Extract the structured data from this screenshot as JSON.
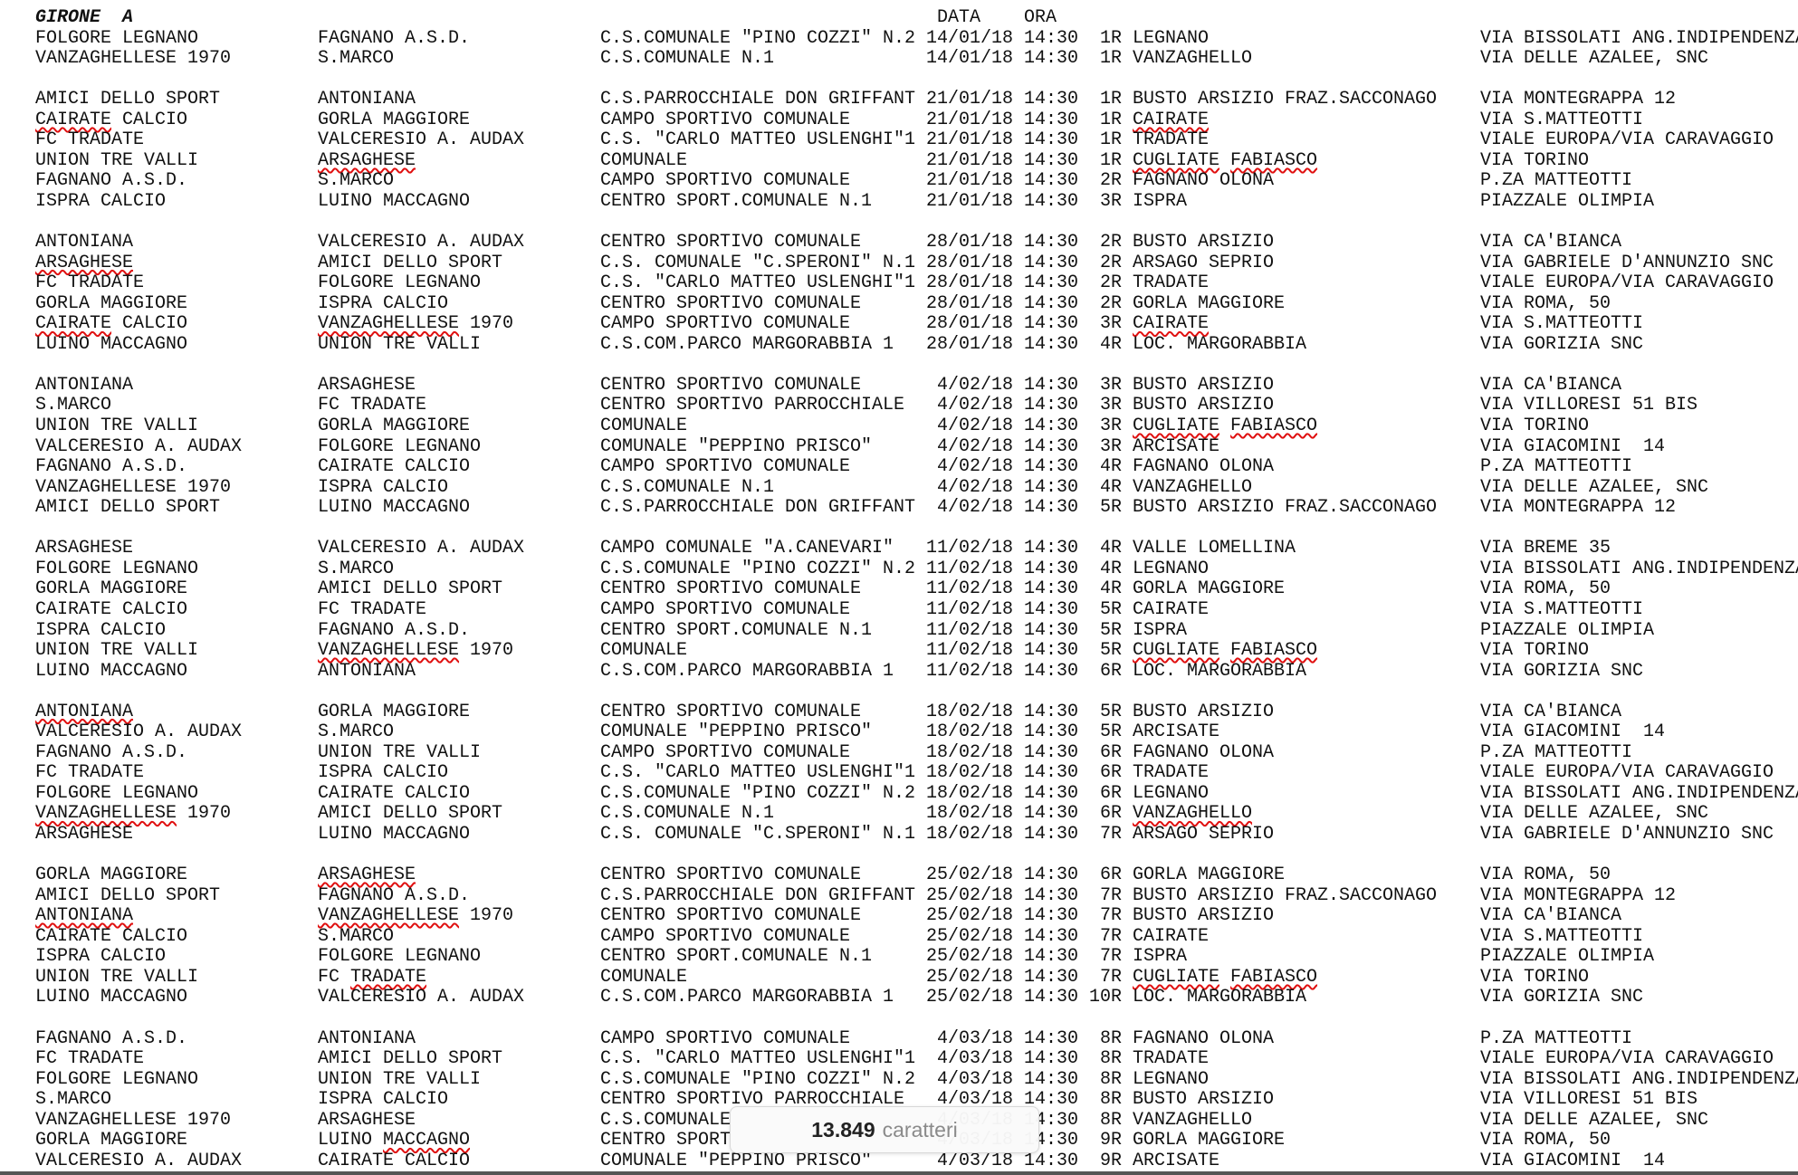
{
  "header": {
    "title": "GIRONE  A",
    "date_label": "DATA",
    "time_label": "ORA"
  },
  "groups": [
    {
      "rows": [
        {
          "c": [
            "FOLGORE LEGNANO",
            "FAGNANO A.S.D.",
            "C.S.COMUNALE \"PINO COZZI\" N.2",
            "14/01/18",
            "14:30",
            "1R",
            "LEGNANO",
            "VIA BISSOLATI ANG.INDIPENDENZA"
          ]
        },
        {
          "c": [
            "VANZAGHELLESE 1970",
            "S.MARCO",
            "C.S.COMUNALE N.1",
            "14/01/18",
            "14:30",
            "1R",
            "VANZAGHELLO",
            "VIA DELLE AZALEE, SNC"
          ]
        }
      ]
    },
    {
      "rows": [
        {
          "c": [
            "AMICI DELLO SPORT",
            "ANTONIANA",
            "C.S.PARROCCHIALE DON GRIFFANT",
            "21/01/18",
            "14:30",
            "1R",
            "BUSTO ARSIZIO FRAZ.SACCONAGO",
            "VIA MONTEGRAPPA 12"
          ]
        },
        {
          "c": [
            "CAIRATE CALCIO",
            "GORLA MAGGIORE",
            "CAMPO SPORTIVO COMUNALE",
            "21/01/18",
            "14:30",
            "1R",
            "CAIRATE",
            "VIA S.MATTEOTTI"
          ],
          "f": {
            "0": [
              "CAIRATE"
            ],
            "6": [
              "CAIRATE"
            ]
          }
        },
        {
          "c": [
            "FC TRADATE",
            "VALCERESIO A. AUDAX",
            "C.S. \"CARLO MATTEO USLENGHI\"1",
            "21/01/18",
            "14:30",
            "1R",
            "TRADATE",
            "VIALE EUROPA/VIA CARAVAGGIO"
          ]
        },
        {
          "c": [
            "UNION TRE VALLI",
            "ARSAGHESE",
            "COMUNALE",
            "21/01/18",
            "14:30",
            "1R",
            "CUGLIATE FABIASCO",
            "VIA TORINO"
          ],
          "f": {
            "1": [
              "ARSAGHESE"
            ],
            "6": [
              "CUGLIATE",
              "FABIASCO"
            ]
          }
        },
        {
          "c": [
            "FAGNANO A.S.D.",
            "S.MARCO",
            "CAMPO SPORTIVO COMUNALE",
            "21/01/18",
            "14:30",
            "2R",
            "FAGNANO OLONA",
            "P.ZA MATTEOTTI"
          ]
        },
        {
          "c": [
            "ISPRA CALCIO",
            "LUINO MACCAGNO",
            "CENTRO SPORT.COMUNALE N.1",
            "21/01/18",
            "14:30",
            "3R",
            "ISPRA",
            "PIAZZALE OLIMPIA"
          ]
        }
      ]
    },
    {
      "rows": [
        {
          "c": [
            "ANTONIANA",
            "VALCERESIO A. AUDAX",
            "CENTRO SPORTIVO COMUNALE",
            "28/01/18",
            "14:30",
            "2R",
            "BUSTO ARSIZIO",
            "VIA CA'BIANCA"
          ]
        },
        {
          "c": [
            "ARSAGHESE",
            "AMICI DELLO SPORT",
            "C.S. COMUNALE \"C.SPERONI\" N.1",
            "28/01/18",
            "14:30",
            "2R",
            "ARSAGO SEPRIO",
            "VIA GABRIELE D'ANNUNZIO SNC"
          ],
          "f": {
            "0": [
              "ARSAGHESE"
            ]
          }
        },
        {
          "c": [
            "FC TRADATE",
            "FOLGORE LEGNANO",
            "C.S. \"CARLO MATTEO USLENGHI\"1",
            "28/01/18",
            "14:30",
            "2R",
            "TRADATE",
            "VIALE EUROPA/VIA CARAVAGGIO"
          ]
        },
        {
          "c": [
            "GORLA MAGGIORE",
            "ISPRA CALCIO",
            "CENTRO SPORTIVO COMUNALE",
            "28/01/18",
            "14:30",
            "2R",
            "GORLA MAGGIORE",
            "VIA ROMA, 50"
          ]
        },
        {
          "c": [
            "CAIRATE CALCIO",
            "VANZAGHELLESE 1970",
            "CAMPO SPORTIVO COMUNALE",
            "28/01/18",
            "14:30",
            "3R",
            "CAIRATE",
            "VIA S.MATTEOTTI"
          ],
          "f": {
            "0": [
              "CAIRATE"
            ],
            "1": [
              "VANZAGHELLESE"
            ],
            "6": [
              "CAIRATE"
            ]
          }
        },
        {
          "c": [
            "LUINO MACCAGNO",
            "UNION TRE VALLI",
            "C.S.COM.PARCO MARGORABBIA 1",
            "28/01/18",
            "14:30",
            "4R",
            "LOC. MARGORABBIA",
            "VIA GORIZIA SNC"
          ]
        }
      ]
    },
    {
      "rows": [
        {
          "c": [
            "ANTONIANA",
            "ARSAGHESE",
            "CENTRO SPORTIVO COMUNALE",
            "4/02/18",
            "14:30",
            "3R",
            "BUSTO ARSIZIO",
            "VIA CA'BIANCA"
          ]
        },
        {
          "c": [
            "S.MARCO",
            "FC TRADATE",
            "CENTRO SPORTIVO PARROCCHIALE",
            "4/02/18",
            "14:30",
            "3R",
            "BUSTO ARSIZIO",
            "VIA VILLORESI 51 BIS"
          ]
        },
        {
          "c": [
            "UNION TRE VALLI",
            "GORLA MAGGIORE",
            "COMUNALE",
            "4/02/18",
            "14:30",
            "3R",
            "CUGLIATE FABIASCO",
            "VIA TORINO"
          ],
          "f": {
            "6": [
              "CUGLIATE",
              "FABIASCO"
            ]
          }
        },
        {
          "c": [
            "VALCERESIO A. AUDAX",
            "FOLGORE LEGNANO",
            "COMUNALE \"PEPPINO PRISCO\"",
            "4/02/18",
            "14:30",
            "3R",
            "ARCISATE",
            "VIA GIACOMINI  14"
          ]
        },
        {
          "c": [
            "FAGNANO A.S.D.",
            "CAIRATE CALCIO",
            "CAMPO SPORTIVO COMUNALE",
            "4/02/18",
            "14:30",
            "4R",
            "FAGNANO OLONA",
            "P.ZA MATTEOTTI"
          ]
        },
        {
          "c": [
            "VANZAGHELLESE 1970",
            "ISPRA CALCIO",
            "C.S.COMUNALE N.1",
            "4/02/18",
            "14:30",
            "4R",
            "VANZAGHELLO",
            "VIA DELLE AZALEE, SNC"
          ]
        },
        {
          "c": [
            "AMICI DELLO SPORT",
            "LUINO MACCAGNO",
            "C.S.PARROCCHIALE DON GRIFFANT",
            "4/02/18",
            "14:30",
            "5R",
            "BUSTO ARSIZIO FRAZ.SACCONAGO",
            "VIA MONTEGRAPPA 12"
          ]
        }
      ]
    },
    {
      "rows": [
        {
          "c": [
            "ARSAGHESE",
            "VALCERESIO A. AUDAX",
            "CAMPO COMUNALE \"A.CANEVARI\"",
            "11/02/18",
            "14:30",
            "4R",
            "VALLE LOMELLINA",
            "VIA BREME 35"
          ]
        },
        {
          "c": [
            "FOLGORE LEGNANO",
            "S.MARCO",
            "C.S.COMUNALE \"PINO COZZI\" N.2",
            "11/02/18",
            "14:30",
            "4R",
            "LEGNANO",
            "VIA BISSOLATI ANG.INDIPENDENZA"
          ]
        },
        {
          "c": [
            "GORLA MAGGIORE",
            "AMICI DELLO SPORT",
            "CENTRO SPORTIVO COMUNALE",
            "11/02/18",
            "14:30",
            "4R",
            "GORLA MAGGIORE",
            "VIA ROMA, 50"
          ]
        },
        {
          "c": [
            "CAIRATE CALCIO",
            "FC TRADATE",
            "CAMPO SPORTIVO COMUNALE",
            "11/02/18",
            "14:30",
            "5R",
            "CAIRATE",
            "VIA S.MATTEOTTI"
          ]
        },
        {
          "c": [
            "ISPRA CALCIO",
            "FAGNANO A.S.D.",
            "CENTRO SPORT.COMUNALE N.1",
            "11/02/18",
            "14:30",
            "5R",
            "ISPRA",
            "PIAZZALE OLIMPIA"
          ]
        },
        {
          "c": [
            "UNION TRE VALLI",
            "VANZAGHELLESE 1970",
            "COMUNALE",
            "11/02/18",
            "14:30",
            "5R",
            "CUGLIATE FABIASCO",
            "VIA TORINO"
          ],
          "f": {
            "1": [
              "VANZAGHELLESE"
            ],
            "6": [
              "CUGLIATE",
              "FABIASCO"
            ]
          }
        },
        {
          "c": [
            "LUINO MACCAGNO",
            "ANTONIANA",
            "C.S.COM.PARCO MARGORABBIA 1",
            "11/02/18",
            "14:30",
            "6R",
            "LOC. MARGORABBIA",
            "VIA GORIZIA SNC"
          ]
        }
      ]
    },
    {
      "rows": [
        {
          "c": [
            "ANTONIANA",
            "GORLA MAGGIORE",
            "CENTRO SPORTIVO COMUNALE",
            "18/02/18",
            "14:30",
            "5R",
            "BUSTO ARSIZIO",
            "VIA CA'BIANCA"
          ],
          "f": {
            "0": [
              "ANTONIANA"
            ]
          }
        },
        {
          "c": [
            "VALCERESIO A. AUDAX",
            "S.MARCO",
            "COMUNALE \"PEPPINO PRISCO\"",
            "18/02/18",
            "14:30",
            "5R",
            "ARCISATE",
            "VIA GIACOMINI  14"
          ]
        },
        {
          "c": [
            "FAGNANO A.S.D.",
            "UNION TRE VALLI",
            "CAMPO SPORTIVO COMUNALE",
            "18/02/18",
            "14:30",
            "6R",
            "FAGNANO OLONA",
            "P.ZA MATTEOTTI"
          ]
        },
        {
          "c": [
            "FC TRADATE",
            "ISPRA CALCIO",
            "C.S. \"CARLO MATTEO USLENGHI\"1",
            "18/02/18",
            "14:30",
            "6R",
            "TRADATE",
            "VIALE EUROPA/VIA CARAVAGGIO"
          ]
        },
        {
          "c": [
            "FOLGORE LEGNANO",
            "CAIRATE CALCIO",
            "C.S.COMUNALE \"PINO COZZI\" N.2",
            "18/02/18",
            "14:30",
            "6R",
            "LEGNANO",
            "VIA BISSOLATI ANG.INDIPENDENZA"
          ]
        },
        {
          "c": [
            "VANZAGHELLESE 1970",
            "AMICI DELLO SPORT",
            "C.S.COMUNALE N.1",
            "18/02/18",
            "14:30",
            "6R",
            "VANZAGHELLO",
            "VIA DELLE AZALEE, SNC"
          ],
          "f": {
            "0": [
              "VANZAGHELLESE"
            ],
            "6": [
              "VANZAGHELLO"
            ]
          }
        },
        {
          "c": [
            "ARSAGHESE",
            "LUINO MACCAGNO",
            "C.S. COMUNALE \"C.SPERONI\" N.1",
            "18/02/18",
            "14:30",
            "7R",
            "ARSAGO SEPRIO",
            "VIA GABRIELE D'ANNUNZIO SNC"
          ]
        }
      ]
    },
    {
      "rows": [
        {
          "c": [
            "GORLA MAGGIORE",
            "ARSAGHESE",
            "CENTRO SPORTIVO COMUNALE",
            "25/02/18",
            "14:30",
            "6R",
            "GORLA MAGGIORE",
            "VIA ROMA, 50"
          ],
          "f": {
            "1": [
              "ARSAGHESE"
            ]
          }
        },
        {
          "c": [
            "AMICI DELLO SPORT",
            "FAGNANO A.S.D.",
            "C.S.PARROCCHIALE DON GRIFFANT",
            "25/02/18",
            "14:30",
            "7R",
            "BUSTO ARSIZIO FRAZ.SACCONAGO",
            "VIA MONTEGRAPPA 12"
          ]
        },
        {
          "c": [
            "ANTONIANA",
            "VANZAGHELLESE 1970",
            "CENTRO SPORTIVO COMUNALE",
            "25/02/18",
            "14:30",
            "7R",
            "BUSTO ARSIZIO",
            "VIA CA'BIANCA"
          ],
          "f": {
            "0": [
              "ANTONIANA"
            ],
            "1": [
              "VANZAGHELLESE"
            ]
          }
        },
        {
          "c": [
            "CAIRATE CALCIO",
            "S.MARCO",
            "CAMPO SPORTIVO COMUNALE",
            "25/02/18",
            "14:30",
            "7R",
            "CAIRATE",
            "VIA S.MATTEOTTI"
          ]
        },
        {
          "c": [
            "ISPRA CALCIO",
            "FOLGORE LEGNANO",
            "CENTRO SPORT.COMUNALE N.1",
            "25/02/18",
            "14:30",
            "7R",
            "ISPRA",
            "PIAZZALE OLIMPIA"
          ]
        },
        {
          "c": [
            "UNION TRE VALLI",
            "FC TRADATE",
            "COMUNALE",
            "25/02/18",
            "14:30",
            "7R",
            "CUGLIATE FABIASCO",
            "VIA TORINO"
          ],
          "f": {
            "1": [
              "TRADATE"
            ],
            "6": [
              "CUGLIATE",
              "FABIASCO"
            ]
          }
        },
        {
          "c": [
            "LUINO MACCAGNO",
            "VALCERESIO A. AUDAX",
            "C.S.COM.PARCO MARGORABBIA 1",
            "25/02/18",
            "14:30",
            "10R",
            "LOC. MARGORABBIA",
            "VIA GORIZIA SNC"
          ]
        }
      ]
    },
    {
      "rows": [
        {
          "c": [
            "FAGNANO A.S.D.",
            "ANTONIANA",
            "CAMPO SPORTIVO COMUNALE",
            "4/03/18",
            "14:30",
            "8R",
            "FAGNANO OLONA",
            "P.ZA MATTEOTTI"
          ]
        },
        {
          "c": [
            "FC TRADATE",
            "AMICI DELLO SPORT",
            "C.S. \"CARLO MATTEO USLENGHI\"1",
            "4/03/18",
            "14:30",
            "8R",
            "TRADATE",
            "VIALE EUROPA/VIA CARAVAGGIO"
          ]
        },
        {
          "c": [
            "FOLGORE LEGNANO",
            "UNION TRE VALLI",
            "C.S.COMUNALE \"PINO COZZI\" N.2",
            "4/03/18",
            "14:30",
            "8R",
            "LEGNANO",
            "VIA BISSOLATI ANG.INDIPENDENZA"
          ]
        },
        {
          "c": [
            "S.MARCO",
            "ISPRA CALCIO",
            "CENTRO SPORTIVO PARROCCHIALE",
            "4/03/18",
            "14:30",
            "8R",
            "BUSTO ARSIZIO",
            "VIA VILLORESI 51 BIS"
          ]
        },
        {
          "c": [
            "VANZAGHELLESE 1970",
            "ARSAGHESE",
            "C.S.COMUNALE",
            "4/03/18",
            "14:30",
            "8R",
            "VANZAGHELLO",
            "VIA DELLE AZALEE, SNC"
          ]
        },
        {
          "c": [
            "GORLA MAGGIORE",
            "LUINO MACCAGNO",
            "CENTRO SPORT",
            "4/03/18",
            "14:30",
            "9R",
            "GORLA MAGGIORE",
            "VIA ROMA, 50"
          ],
          "f": {
            "1": [
              "MACCAGNO"
            ]
          }
        },
        {
          "c": [
            "VALCERESIO A. AUDAX",
            "CAIRATE CALCIO",
            "COMUNALE \"PEPPINO PRISCO\"",
            "4/03/18",
            "14:30",
            "9R",
            "ARCISATE",
            "VIA GIACOMINI  14"
          ]
        }
      ]
    }
  ],
  "popup": {
    "count": "13.849",
    "label": "caratteri"
  },
  "colors": {
    "text": "#111111",
    "spellcheck_underline": "#e01010",
    "background": "#ffffff"
  }
}
